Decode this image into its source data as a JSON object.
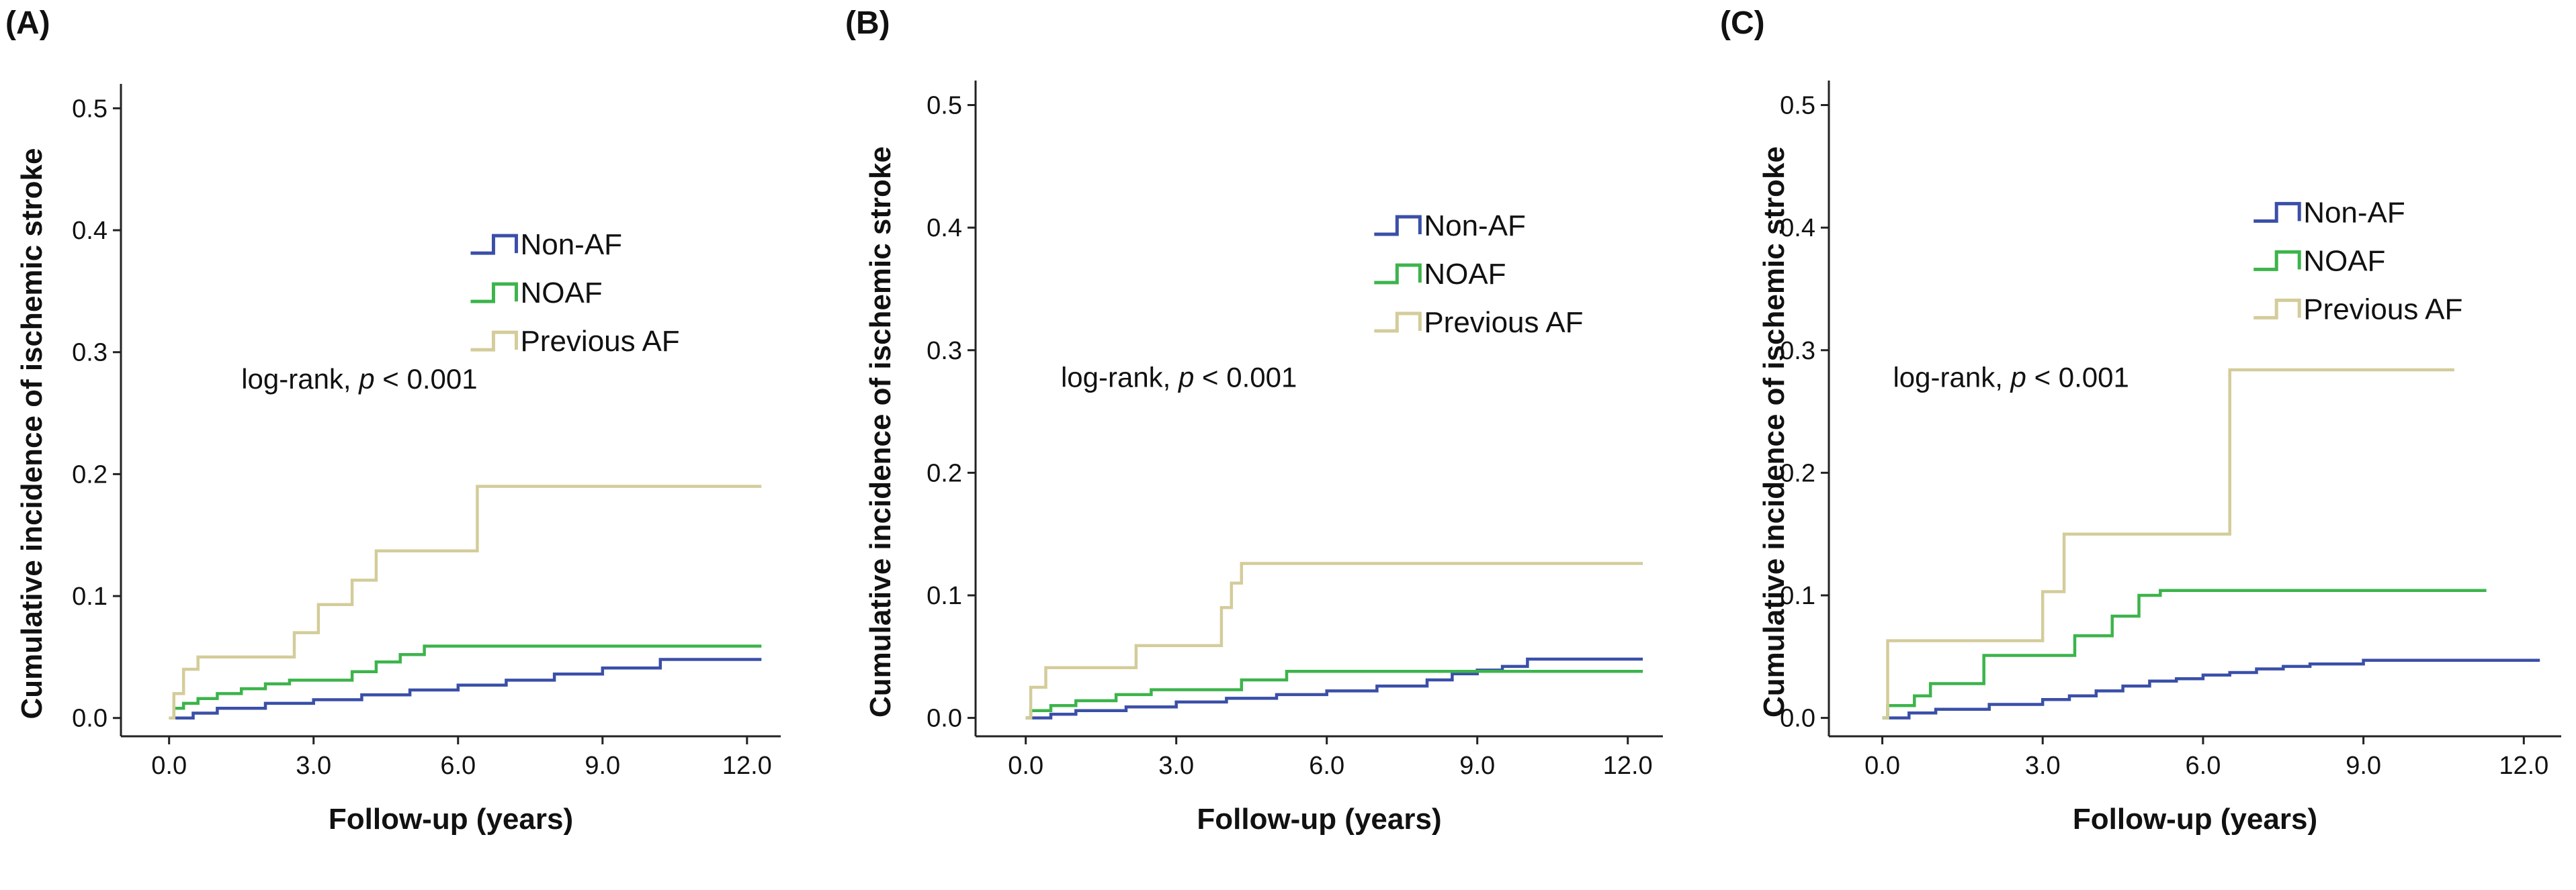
{
  "figure": {
    "panels": [
      "(A)",
      "(B)",
      "(C)"
    ]
  },
  "chart_data": [
    {
      "type": "line",
      "step": true,
      "panel_label": "(A)",
      "xlabel": "Follow-up (years)",
      "ylabel": "Cumulative incidence of ischemic stroke",
      "xlim": [
        -1.0,
        12.7
      ],
      "ylim": [
        -0.015,
        0.52
      ],
      "xticks": [
        0.0,
        3.0,
        6.0,
        9.0,
        12.0
      ],
      "xtick_labels": [
        "0.0",
        "3.0",
        "6.0",
        "9.0",
        "12.0"
      ],
      "yticks": [
        0.0,
        0.1,
        0.2,
        0.3,
        0.4,
        0.5
      ],
      "ytick_labels": [
        "0.0",
        "0.1",
        "0.2",
        "0.3",
        "0.4",
        "0.5"
      ],
      "annotation": {
        "prefix": "log-rank, ",
        "italic": "p",
        "suffix": " < 0.001",
        "x": 1.5,
        "y": 0.27
      },
      "legend": {
        "placement": "top-right",
        "entries": [
          "Non-AF",
          "NOAF",
          "Previous AF"
        ]
      },
      "series": [
        {
          "name": "Non-AF",
          "color": "#3a4fa8",
          "x": [
            0.0,
            0.5,
            1.0,
            2.0,
            3.0,
            4.0,
            5.0,
            6.0,
            7.0,
            8.0,
            9.0,
            10.2,
            12.3
          ],
          "y": [
            0.0,
            0.004,
            0.008,
            0.012,
            0.015,
            0.019,
            0.023,
            0.027,
            0.031,
            0.036,
            0.041,
            0.048,
            0.048
          ]
        },
        {
          "name": "NOAF",
          "color": "#3cb44b",
          "x": [
            0.0,
            0.1,
            0.3,
            0.6,
            1.0,
            1.5,
            2.0,
            2.5,
            3.0,
            3.8,
            4.3,
            4.8,
            5.3,
            12.3
          ],
          "y": [
            0.0,
            0.008,
            0.012,
            0.016,
            0.02,
            0.024,
            0.028,
            0.031,
            0.031,
            0.038,
            0.046,
            0.052,
            0.059,
            0.059
          ]
        },
        {
          "name": "Previous AF",
          "color": "#d4cc9a",
          "x": [
            0.0,
            0.1,
            0.3,
            0.6,
            2.0,
            2.6,
            3.1,
            3.8,
            4.3,
            6.4,
            12.3
          ],
          "y": [
            0.0,
            0.02,
            0.04,
            0.05,
            0.05,
            0.07,
            0.093,
            0.113,
            0.137,
            0.19,
            0.19
          ]
        }
      ]
    },
    {
      "type": "line",
      "step": true,
      "panel_label": "(B)",
      "xlabel": "Follow-up (years)",
      "ylabel": "Cumulative incidence of ischemic stroke",
      "xlim": [
        -1.0,
        12.7
      ],
      "ylim": [
        -0.015,
        0.52
      ],
      "xticks": [
        0.0,
        3.0,
        6.0,
        9.0,
        12.0
      ],
      "xtick_labels": [
        "0.0",
        "3.0",
        "6.0",
        "9.0",
        "12.0"
      ],
      "yticks": [
        0.0,
        0.1,
        0.2,
        0.3,
        0.4,
        0.5
      ],
      "ytick_labels": [
        "0.0",
        "0.1",
        "0.2",
        "0.3",
        "0.4",
        "0.5"
      ],
      "annotation": {
        "prefix": "log-rank, ",
        "italic": "p",
        "suffix": " < 0.001",
        "x": 0.7,
        "y": 0.27
      },
      "legend": {
        "placement": "top-right",
        "entries": [
          "Non-AF",
          "NOAF",
          "Previous AF"
        ]
      },
      "series": [
        {
          "name": "Non-AF",
          "color": "#3a4fa8",
          "x": [
            0.0,
            0.5,
            1.0,
            2.0,
            3.0,
            4.0,
            5.0,
            6.0,
            7.0,
            8.0,
            8.5,
            9.0,
            9.5,
            10.0,
            12.3
          ],
          "y": [
            0.0,
            0.003,
            0.006,
            0.009,
            0.013,
            0.016,
            0.019,
            0.022,
            0.026,
            0.031,
            0.036,
            0.039,
            0.042,
            0.048,
            0.048
          ]
        },
        {
          "name": "NOAF",
          "color": "#3cb44b",
          "x": [
            0.0,
            0.1,
            0.5,
            1.0,
            1.8,
            2.5,
            4.3,
            5.2,
            12.3
          ],
          "y": [
            0.0,
            0.006,
            0.01,
            0.014,
            0.019,
            0.023,
            0.031,
            0.038,
            0.038
          ]
        },
        {
          "name": "Previous AF",
          "color": "#d4cc9a",
          "x": [
            0.0,
            0.1,
            0.4,
            2.2,
            3.9,
            4.1,
            4.3,
            12.3
          ],
          "y": [
            0.0,
            0.025,
            0.041,
            0.059,
            0.09,
            0.11,
            0.126,
            0.126
          ]
        }
      ]
    },
    {
      "type": "line",
      "step": true,
      "panel_label": "(C)",
      "xlabel": "Follow-up (years)",
      "ylabel": "Cumulative incidence of ischemic stroke",
      "xlim": [
        -1.0,
        12.7
      ],
      "ylim": [
        -0.015,
        0.52
      ],
      "xticks": [
        0.0,
        3.0,
        6.0,
        9.0,
        12.0
      ],
      "xtick_labels": [
        "0.0",
        "3.0",
        "6.0",
        "9.0",
        "12.0"
      ],
      "yticks": [
        0.0,
        0.1,
        0.2,
        0.3,
        0.4,
        0.5
      ],
      "ytick_labels": [
        "0.0",
        "0.1",
        "0.2",
        "0.3",
        "0.4",
        "0.5"
      ],
      "annotation": {
        "prefix": "log-rank, ",
        "italic": "p",
        "suffix": " < 0.001",
        "x": 0.2,
        "y": 0.27
      },
      "legend": {
        "placement": "top-right",
        "entries": [
          "Non-AF",
          "NOAF",
          "Previous AF"
        ]
      },
      "series": [
        {
          "name": "Non-AF",
          "color": "#3a4fa8",
          "x": [
            0.0,
            0.5,
            1.0,
            2.0,
            3.0,
            3.5,
            4.0,
            4.5,
            5.0,
            5.5,
            6.0,
            6.5,
            7.0,
            7.5,
            8.0,
            9.0,
            12.3
          ],
          "y": [
            0.0,
            0.004,
            0.007,
            0.011,
            0.015,
            0.018,
            0.022,
            0.026,
            0.03,
            0.032,
            0.035,
            0.037,
            0.04,
            0.042,
            0.044,
            0.047,
            0.047
          ]
        },
        {
          "name": "NOAF",
          "color": "#3cb44b",
          "x": [
            0.0,
            0.1,
            0.6,
            0.9,
            1.9,
            3.6,
            4.3,
            4.8,
            5.2,
            11.3
          ],
          "y": [
            0.0,
            0.01,
            0.018,
            0.028,
            0.051,
            0.067,
            0.083,
            0.1,
            0.104,
            0.104
          ]
        },
        {
          "name": "Previous AF",
          "color": "#d4cc9a",
          "x": [
            0.0,
            0.1,
            3.0,
            3.4,
            6.5,
            10.7
          ],
          "y": [
            0.0,
            0.063,
            0.103,
            0.15,
            0.284,
            0.284
          ]
        }
      ]
    }
  ]
}
